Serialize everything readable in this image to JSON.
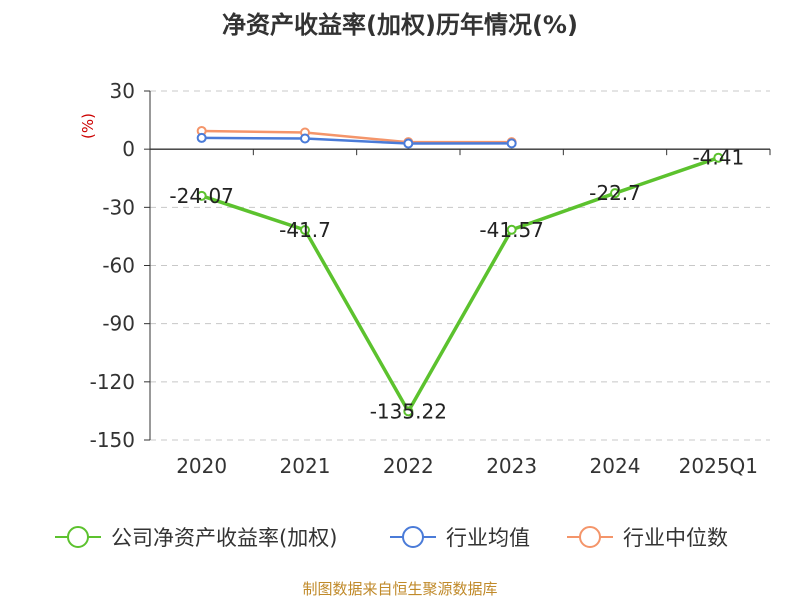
{
  "chart_data": {
    "type": "line",
    "title": "净资产收益率(加权)历年情况(%)",
    "ylabel": "(%)",
    "categories": [
      "2020",
      "2021",
      "2022",
      "2023",
      "2024",
      "2025Q1"
    ],
    "ylim": [
      -150,
      30
    ],
    "yticks": [
      30,
      0,
      -30,
      -60,
      -90,
      -120,
      -150
    ],
    "grid": true,
    "legend_position": "bottom",
    "series": [
      {
        "name": "公司净资产收益率(加权)",
        "color": "#5cc22e",
        "values": [
          -24.07,
          -41.7,
          -135.22,
          -41.57,
          -22.7,
          -4.41
        ],
        "labels": [
          "-24.07",
          "-41.7",
          "-135.22",
          "-41.57",
          "-22.7",
          "-4.41"
        ]
      },
      {
        "name": "行业均值",
        "color": "#4a7bd8",
        "values": [
          5.8,
          5.5,
          2.9,
          3.0,
          null,
          null
        ]
      },
      {
        "name": "行业中位数",
        "color": "#f4956a",
        "values": [
          9.4,
          8.6,
          3.6,
          3.6,
          null,
          null
        ]
      }
    ],
    "source": "制图数据来自恒生聚源数据库"
  }
}
